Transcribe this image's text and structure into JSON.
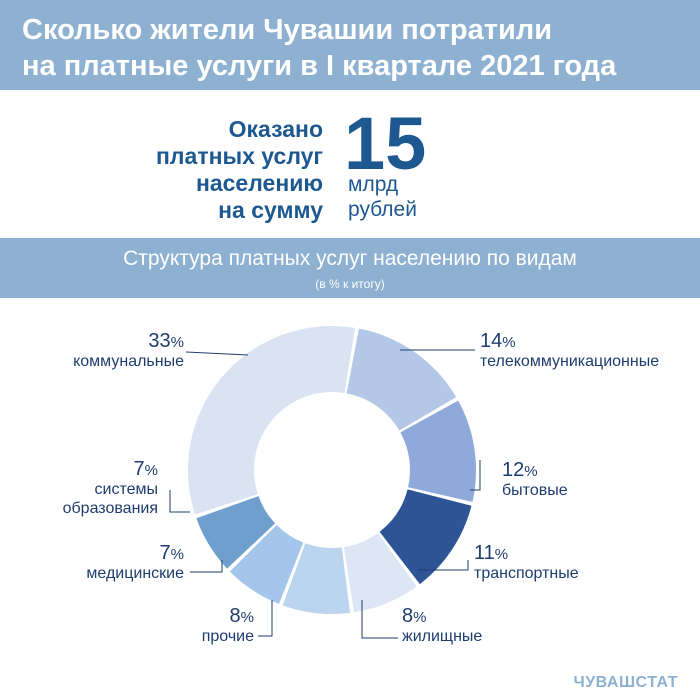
{
  "header": {
    "line1": "Сколько жители Чувашии потратили",
    "line2": "на платные услуги в  I  квартале 2021 года"
  },
  "kpi": {
    "label_lines": [
      "Оказано",
      "платных услуг",
      "населению",
      "на сумму"
    ],
    "value": "15",
    "unit_lines": [
      "млрд",
      "рублей"
    ]
  },
  "structure": {
    "title": "Структура платных услуг населению по видам",
    "subtitle": "(в % к итогу)"
  },
  "chart_data": {
    "type": "pie",
    "variant": "donut",
    "title": "Структура платных услуг населению по видам",
    "unit": "%",
    "slices": [
      {
        "label": "телекоммуникационные",
        "value": 14,
        "color": "#b3c8e6"
      },
      {
        "label": "бытовые",
        "value": 12,
        "color": "#8fa9da"
      },
      {
        "label": "транспортные",
        "value": 11,
        "color": "#2d5494"
      },
      {
        "label": "жилищные",
        "value": 8,
        "color": "#dce6f4"
      },
      {
        "label": "прочие",
        "value": 8,
        "color": "#bcd5ee"
      },
      {
        "label": "медицинские",
        "value": 7,
        "color": "#a4c6ea"
      },
      {
        "label": "системы образования",
        "value": 7,
        "color": "#6f9fcc"
      },
      {
        "label": "коммунальные",
        "value": 33,
        "color": "#d9e3f2"
      }
    ]
  },
  "labels": {
    "communal": {
      "pct": "33",
      "name": "коммунальные"
    },
    "telecom": {
      "pct": "14",
      "name": "телекоммуникационные"
    },
    "household": {
      "pct": "12",
      "name": "бытовые"
    },
    "transport": {
      "pct": "11",
      "name": "транспортные"
    },
    "housing": {
      "pct": "8",
      "name": "жилищные"
    },
    "other": {
      "pct": "8",
      "name": "прочие"
    },
    "medical": {
      "pct": "7",
      "name": "медицинские"
    },
    "education": {
      "pct": "7",
      "name_line1": "системы",
      "name_line2": "образования"
    },
    "pct_sign": "%"
  },
  "source": "ЧУВАШСТАТ"
}
